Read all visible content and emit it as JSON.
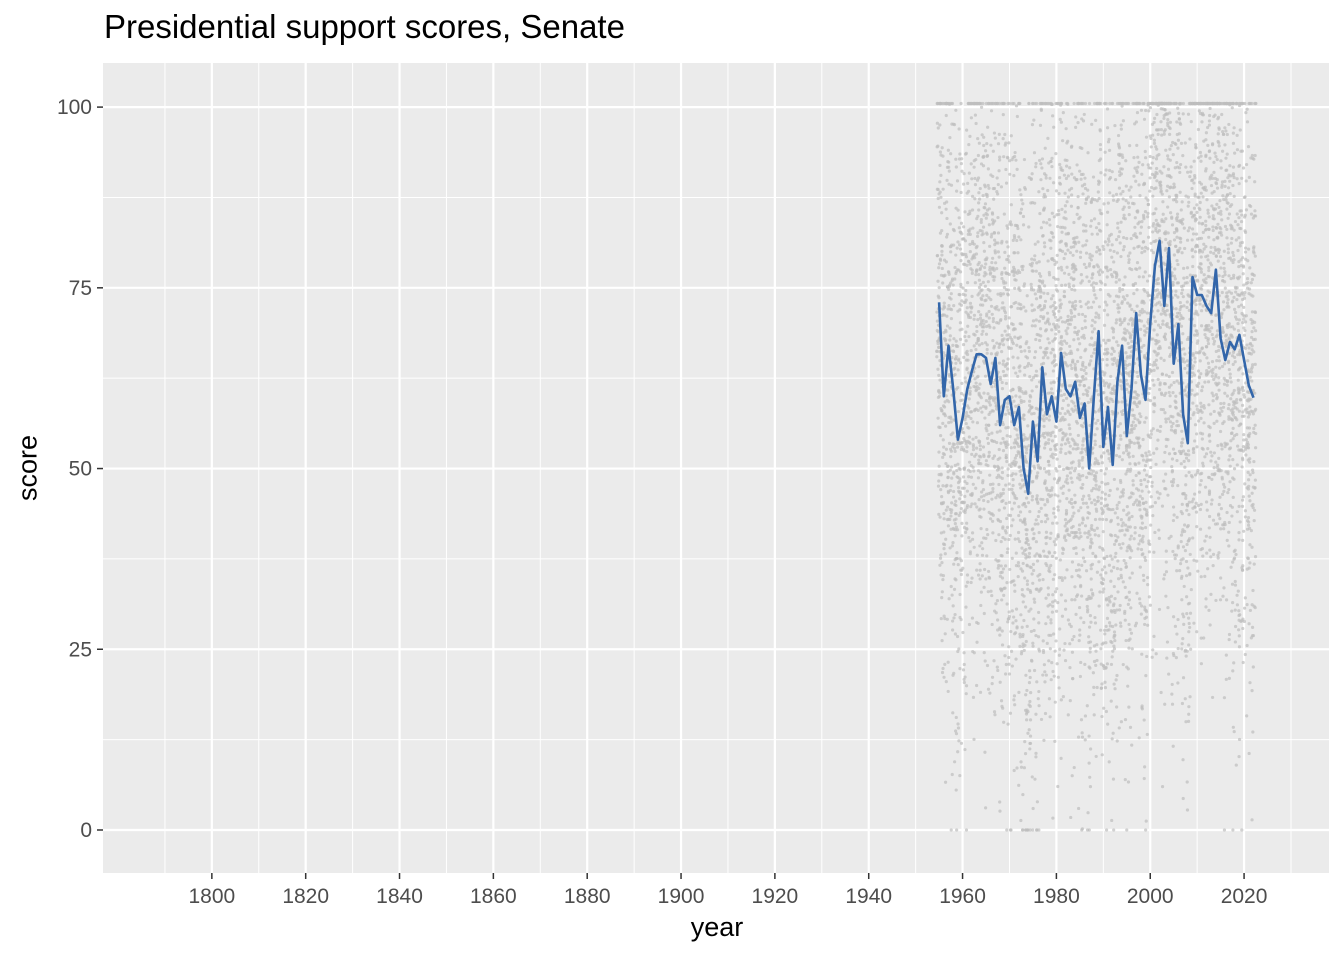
{
  "chart_data": {
    "type": "line",
    "title": "Presidential support scores, Senate",
    "xlabel": "year",
    "ylabel": "score",
    "xlim": [
      1776.8,
      2038.1
    ],
    "ylim": [
      -5.95,
      106.1
    ],
    "x_ticks": [
      1800,
      1820,
      1840,
      1860,
      1880,
      1900,
      1920,
      1940,
      1960,
      1980,
      2000,
      2020
    ],
    "y_ticks": [
      0,
      25,
      50,
      75,
      100
    ],
    "grid": true,
    "legend": "none",
    "colors": {
      "panel": "#EBEBEB",
      "grid": "#FFFFFF",
      "points": "#BEBEBE",
      "line": "#3366AA"
    },
    "scatter": {
      "description_visible": false,
      "x_range": [
        1955,
        2022
      ],
      "y_range": [
        0,
        100
      ]
    },
    "series": [
      {
        "x": [
          1955,
          1956,
          1957,
          1958,
          1959,
          1960,
          1961,
          1962,
          1963,
          1964,
          1965,
          1966,
          1967,
          1968,
          1969,
          1970,
          1971,
          1972,
          1973,
          1974,
          1975,
          1976,
          1977,
          1978,
          1979,
          1980,
          1981,
          1982,
          1983,
          1984,
          1985,
          1986,
          1987,
          1988,
          1989,
          1990,
          1991,
          1992,
          1993,
          1994,
          1995,
          1996,
          1997,
          1998,
          1999,
          2000,
          2001,
          2002,
          2003,
          2004,
          2005,
          2006,
          2007,
          2008,
          2009,
          2010,
          2011,
          2012,
          2013,
          2014,
          2015,
          2016,
          2017,
          2018,
          2019,
          2020,
          2021,
          2022
        ],
        "values": [
          73,
          60,
          67,
          61,
          54,
          57,
          61,
          63.5,
          65.8,
          65.8,
          65.3,
          61.7,
          65.3,
          56,
          59.5,
          60,
          56,
          58.5,
          50,
          46.5,
          56.5,
          51,
          64,
          57.5,
          60,
          56.5,
          66,
          61,
          60,
          62,
          57,
          59,
          50,
          60,
          69,
          53,
          58.5,
          50.5,
          62,
          67,
          54.5,
          61,
          71.5,
          63,
          59.5,
          70,
          78,
          81.5,
          72.5,
          80.5,
          64.5,
          70,
          57.5,
          53.5,
          76.5,
          74,
          74,
          72.5,
          71.5,
          77.5,
          68,
          65,
          67.5,
          66.5,
          68.5,
          65,
          61.5,
          59.8
        ]
      }
    ]
  }
}
